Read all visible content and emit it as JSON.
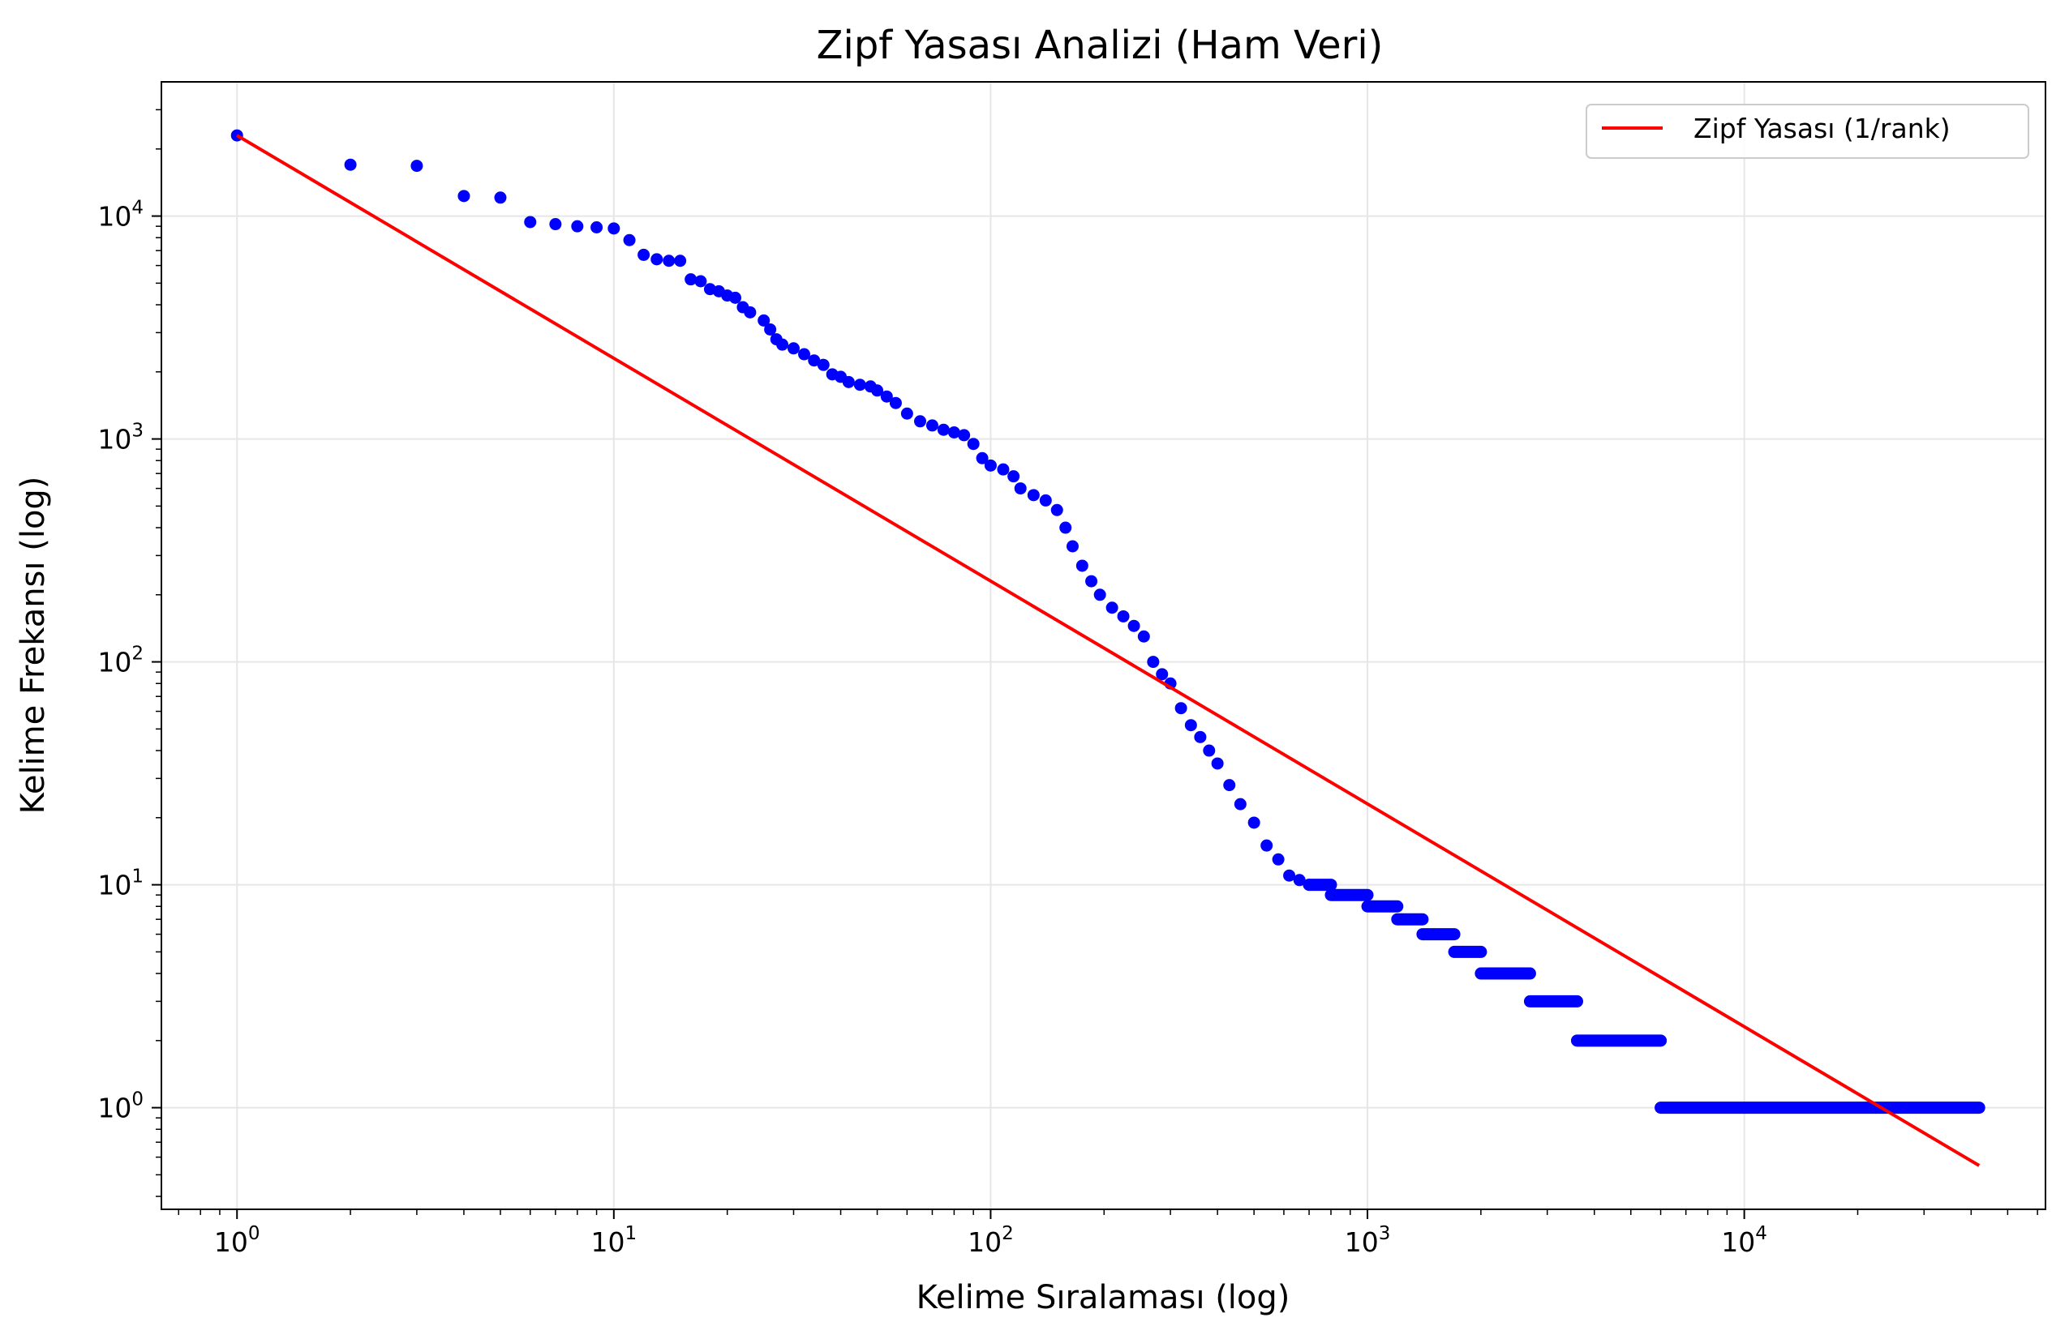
{
  "chart_data": {
    "type": "scatter",
    "title": "Zipf Yasası Analizi (Ham Veri)",
    "xlabel": "Kelime Sıralaması (log)",
    "ylabel": "Kelime Frekansı (log)",
    "xscale": "log",
    "yscale": "log",
    "xlim": [
      0.63,
      63000
    ],
    "ylim": [
      0.35,
      40000
    ],
    "grid": true,
    "legend": {
      "position": "top-right",
      "entries": [
        "Zipf Yasası (1/rank)"
      ]
    },
    "x_ticks": [
      {
        "base": "10",
        "exp": "0",
        "value": 1
      },
      {
        "base": "10",
        "exp": "1",
        "value": 10
      },
      {
        "base": "10",
        "exp": "2",
        "value": 100
      },
      {
        "base": "10",
        "exp": "3",
        "value": 1000
      },
      {
        "base": "10",
        "exp": "4",
        "value": 10000
      }
    ],
    "y_ticks": [
      {
        "base": "10",
        "exp": "0",
        "value": 1
      },
      {
        "base": "10",
        "exp": "1",
        "value": 10
      },
      {
        "base": "10",
        "exp": "2",
        "value": 100
      },
      {
        "base": "10",
        "exp": "3",
        "value": 1000
      },
      {
        "base": "10",
        "exp": "4",
        "value": 10000
      }
    ],
    "series": [
      {
        "kind": "scatter",
        "color": "#0000ff",
        "description": "observed frequencies (rank, frequency)",
        "points": [
          [
            1,
            23000
          ],
          [
            2,
            17000
          ],
          [
            3,
            16800
          ],
          [
            4,
            12300
          ],
          [
            5,
            12100
          ],
          [
            6,
            9400
          ],
          [
            7,
            9200
          ],
          [
            8,
            9000
          ],
          [
            9,
            8900
          ],
          [
            10,
            8800
          ],
          [
            11,
            7800
          ],
          [
            12,
            6700
          ],
          [
            13,
            6400
          ],
          [
            14,
            6300
          ],
          [
            15,
            6300
          ],
          [
            16,
            5200
          ],
          [
            17,
            5100
          ],
          [
            18,
            4700
          ],
          [
            19,
            4600
          ],
          [
            20,
            4400
          ],
          [
            21,
            4300
          ],
          [
            22,
            3900
          ],
          [
            23,
            3700
          ],
          [
            25,
            3400
          ],
          [
            26,
            3100
          ],
          [
            27,
            2800
          ],
          [
            28,
            2650
          ],
          [
            30,
            2550
          ],
          [
            32,
            2400
          ],
          [
            34,
            2250
          ],
          [
            36,
            2150
          ],
          [
            38,
            1950
          ],
          [
            40,
            1900
          ],
          [
            42,
            1800
          ],
          [
            45,
            1750
          ],
          [
            48,
            1720
          ],
          [
            50,
            1650
          ],
          [
            53,
            1550
          ],
          [
            56,
            1450
          ],
          [
            60,
            1300
          ],
          [
            65,
            1200
          ],
          [
            70,
            1150
          ],
          [
            75,
            1100
          ],
          [
            80,
            1070
          ],
          [
            85,
            1040
          ],
          [
            90,
            950
          ],
          [
            95,
            820
          ],
          [
            100,
            760
          ],
          [
            108,
            730
          ],
          [
            115,
            680
          ],
          [
            120,
            600
          ],
          [
            130,
            560
          ],
          [
            140,
            530
          ],
          [
            150,
            480
          ],
          [
            158,
            400
          ],
          [
            165,
            330
          ],
          [
            175,
            270
          ],
          [
            185,
            230
          ],
          [
            195,
            200
          ],
          [
            210,
            175
          ],
          [
            225,
            160
          ],
          [
            240,
            145
          ],
          [
            255,
            130
          ],
          [
            270,
            100
          ],
          [
            285,
            88
          ],
          [
            300,
            80
          ],
          [
            320,
            62
          ],
          [
            340,
            52
          ],
          [
            360,
            46
          ],
          [
            380,
            40
          ],
          [
            400,
            35
          ],
          [
            430,
            28
          ],
          [
            460,
            23
          ],
          [
            500,
            19
          ],
          [
            540,
            15
          ],
          [
            580,
            13
          ],
          [
            620,
            11
          ],
          [
            660,
            10.5
          ],
          [
            700,
            10
          ]
        ],
        "runs": [
          {
            "x_from": 700,
            "x_to": 800,
            "y": 10
          },
          {
            "x_from": 800,
            "x_to": 1000,
            "y": 9
          },
          {
            "x_from": 1000,
            "x_to": 1200,
            "y": 8
          },
          {
            "x_from": 1200,
            "x_to": 1400,
            "y": 7
          },
          {
            "x_from": 1400,
            "x_to": 1700,
            "y": 6
          },
          {
            "x_from": 1700,
            "x_to": 2000,
            "y": 5
          },
          {
            "x_from": 2000,
            "x_to": 2700,
            "y": 4
          },
          {
            "x_from": 2700,
            "x_to": 3600,
            "y": 3
          },
          {
            "x_from": 3600,
            "x_to": 6000,
            "y": 2
          },
          {
            "x_from": 6000,
            "x_to": 42000,
            "y": 1
          }
        ]
      },
      {
        "kind": "line",
        "name": "Zipf Yasası (1/rank)",
        "color": "#ff0000",
        "x": [
          1,
          42000
        ],
        "y": [
          23000,
          0.55
        ]
      }
    ]
  }
}
